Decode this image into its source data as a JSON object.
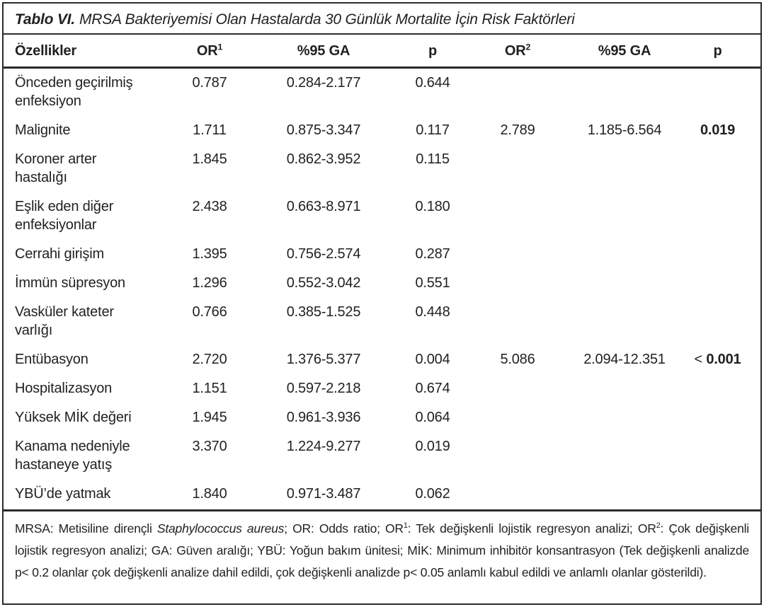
{
  "title": {
    "prefix": "Tablo VI.",
    "text": "MRSA Bakteriyemisi Olan Hastalarda 30 Günlük Mortalite İçin Risk Faktörleri"
  },
  "table": {
    "columns": [
      {
        "label": "Özellikler",
        "sup": ""
      },
      {
        "label": "OR",
        "sup": "1"
      },
      {
        "label": "%95 GA",
        "sup": ""
      },
      {
        "label": "p",
        "sup": ""
      },
      {
        "label": "OR",
        "sup": "2"
      },
      {
        "label": "%95 GA",
        "sup": ""
      },
      {
        "label": "p",
        "sup": ""
      }
    ],
    "rows": [
      {
        "ozellik": "Önceden geçirilmiş\nenfeksiyon",
        "or1": "0.787",
        "ga1": "0.284-2.177",
        "p1": "0.644",
        "or2": "",
        "ga2": "",
        "p2_prefix": "",
        "p2": "",
        "p2_bold": false
      },
      {
        "ozellik": "Malignite",
        "or1": "1.711",
        "ga1": "0.875-3.347",
        "p1": "0.117",
        "or2": "2.789",
        "ga2": "1.185-6.564",
        "p2_prefix": "",
        "p2": "0.019",
        "p2_bold": true
      },
      {
        "ozellik": "Koroner arter\nhastalığı",
        "or1": "1.845",
        "ga1": "0.862-3.952",
        "p1": "0.115",
        "or2": "",
        "ga2": "",
        "p2_prefix": "",
        "p2": "",
        "p2_bold": false
      },
      {
        "ozellik": "Eşlik eden diğer\nenfeksiyonlar",
        "or1": "2.438",
        "ga1": "0.663-8.971",
        "p1": "0.180",
        "or2": "",
        "ga2": "",
        "p2_prefix": "",
        "p2": "",
        "p2_bold": false
      },
      {
        "ozellik": "Cerrahi girişim",
        "or1": "1.395",
        "ga1": "0.756-2.574",
        "p1": "0.287",
        "or2": "",
        "ga2": "",
        "p2_prefix": "",
        "p2": "",
        "p2_bold": false
      },
      {
        "ozellik": "İmmün süpresyon",
        "or1": "1.296",
        "ga1": "0.552-3.042",
        "p1": "0.551",
        "or2": "",
        "ga2": "",
        "p2_prefix": "",
        "p2": "",
        "p2_bold": false
      },
      {
        "ozellik": "Vasküler kateter\nvarlığı",
        "or1": "0.766",
        "ga1": "0.385-1.525",
        "p1": "0.448",
        "or2": "",
        "ga2": "",
        "p2_prefix": "",
        "p2": "",
        "p2_bold": false
      },
      {
        "ozellik": "Entübasyon",
        "or1": "2.720",
        "ga1": "1.376-5.377",
        "p1": "0.004",
        "or2": "5.086",
        "ga2": "2.094-12.351",
        "p2_prefix": "< ",
        "p2": "0.001",
        "p2_bold": true
      },
      {
        "ozellik": "Hospitalizasyon",
        "or1": "1.151",
        "ga1": "0.597-2.218",
        "p1": "0.674",
        "or2": "",
        "ga2": "",
        "p2_prefix": "",
        "p2": "",
        "p2_bold": false
      },
      {
        "ozellik": "Yüksek MİK değeri",
        "or1": "1.945",
        "ga1": "0.961-3.936",
        "p1": "0.064",
        "or2": "",
        "ga2": "",
        "p2_prefix": "",
        "p2": "",
        "p2_bold": false
      },
      {
        "ozellik": "Kanama nedeniyle\nhastaneye yatış",
        "or1": "3.370",
        "ga1": "1.224-9.277",
        "p1": "0.019",
        "or2": "",
        "ga2": "",
        "p2_prefix": "",
        "p2": "",
        "p2_bold": false
      },
      {
        "ozellik": "YBÜ’de yatmak",
        "or1": "1.840",
        "ga1": "0.971-3.487",
        "p1": "0.062",
        "or2": "",
        "ga2": "",
        "p2_prefix": "",
        "p2": "",
        "p2_bold": false
      }
    ],
    "footnote_segments": [
      {
        "text": "MRSA: Metisiline dirençli ",
        "style": "normal"
      },
      {
        "text": "Staphylococcus aureus",
        "style": "italic"
      },
      {
        "text": "; OR: Odds ratio; OR",
        "style": "normal"
      },
      {
        "text": "1",
        "style": "sup"
      },
      {
        "text": ": Tek değişkenli lojistik regresyon analizi; OR",
        "style": "normal"
      },
      {
        "text": "2",
        "style": "sup"
      },
      {
        "text": ": Çok değişkenli lojistik regresyon analizi; GA: Güven aralığı; YBÜ: Yoğun bakım ünitesi; MİK: Minimum inhibitör konsantrasyon (Tek değişkenli analizde p< 0.2 olanlar çok değişkenli analize dahil edildi, çok değişkenli analizde p< 0.05 anlamlı kabul edildi ve anlamlı olanlar gösterildi).",
        "style": "normal"
      }
    ]
  },
  "colors": {
    "text": "#231f20",
    "rule": "#2b2b2b",
    "background": "#ffffff"
  }
}
